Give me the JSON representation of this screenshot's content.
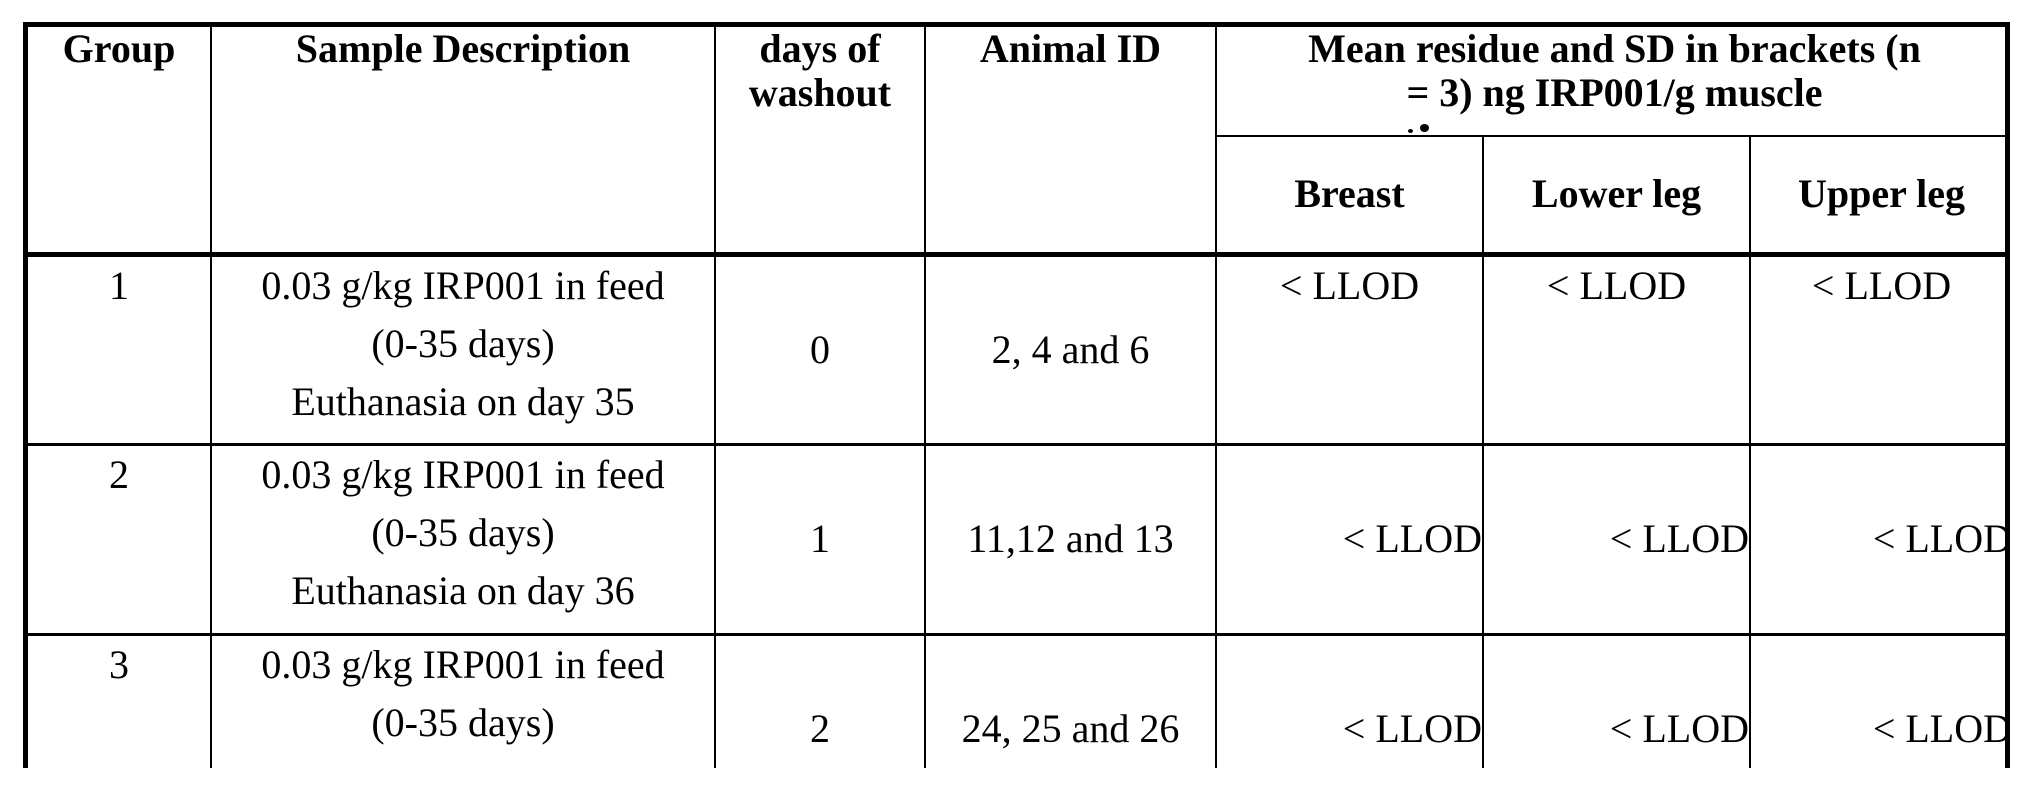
{
  "table": {
    "columns": {
      "group": "Group",
      "sample_description": "Sample Description",
      "days_of_washout": "days of\nwashout",
      "animal_id": "Animal ID",
      "residue_group": "Mean residue and SD in brackets (n\n= 3) ng IRP001/g muscle",
      "residue_sub": [
        "Breast",
        "Lower leg",
        "Upper leg"
      ]
    },
    "rows": [
      {
        "group": "1",
        "sample_description": "0.03 g/kg IRP001 in feed\n(0-35 days)\nEuthanasia on day 35",
        "days_of_washout": "0",
        "animal_id": "2, 4 and 6",
        "breast": "< LLOD",
        "lower_leg": "< LLOD",
        "upper_leg": "< LLOD"
      },
      {
        "group": "2",
        "sample_description": "0.03 g/kg IRP001 in feed\n(0-35 days)\nEuthanasia on day 36",
        "days_of_washout": "1",
        "animal_id": "11,12 and 13",
        "breast": "< LLOD",
        "lower_leg": "< LLOD",
        "upper_leg": "< LLOD"
      },
      {
        "group": "3",
        "sample_description": "0.03 g/kg IRP001 in feed\n(0-35 days)",
        "days_of_washout": "2",
        "animal_id": "24, 25 and 26",
        "breast": "< LLOD",
        "lower_leg": "< LLOD",
        "upper_leg": "< LLOD"
      }
    ]
  }
}
